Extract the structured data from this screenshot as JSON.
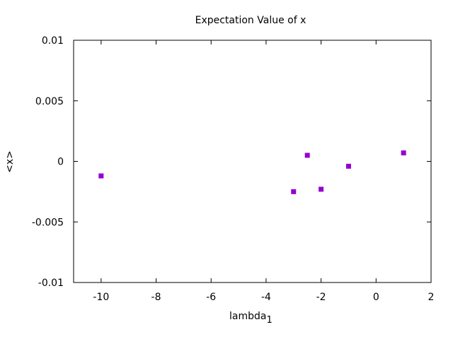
{
  "chart_data": {
    "type": "scatter",
    "title": "Expectation Value of x",
    "xlabel": "lambda",
    "xlabel_subscript": "1",
    "ylabel": "<x>",
    "xlim": [
      -11,
      2
    ],
    "ylim": [
      -0.01,
      0.01
    ],
    "xticks": [
      -10,
      -8,
      -6,
      -4,
      -2,
      0,
      2
    ],
    "xtick_labels": [
      "-10",
      "-8",
      "-6",
      "-4",
      "-2",
      "0",
      "2"
    ],
    "yticks": [
      -0.01,
      -0.005,
      0,
      0.005,
      0.01
    ],
    "ytick_labels": [
      "-0.01",
      "-0.005",
      "0",
      "0.005",
      "0.01"
    ],
    "grid": false,
    "legend": "none",
    "marker_color": "#9400d3",
    "marker": "square",
    "series": [
      {
        "points": [
          {
            "x": -10,
            "y": -0.0012
          },
          {
            "x": -3,
            "y": -0.0025
          },
          {
            "x": -2.5,
            "y": 0.0005
          },
          {
            "x": -2,
            "y": -0.0023
          },
          {
            "x": -1,
            "y": -0.0004
          },
          {
            "x": 1,
            "y": 0.0007
          }
        ]
      }
    ]
  }
}
